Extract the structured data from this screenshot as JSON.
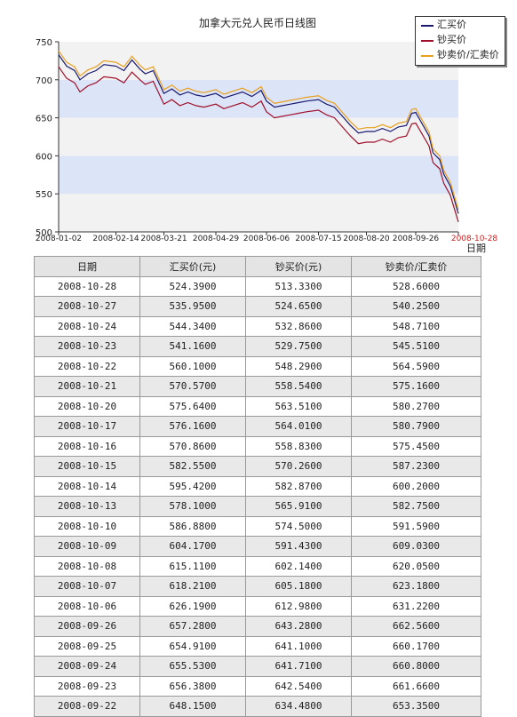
{
  "chart_data": {
    "type": "line",
    "title": "加拿大元兑人民币日线图",
    "xlabel": "日期",
    "ylabel": "",
    "ylim": [
      500,
      750
    ],
    "yticks": [
      500,
      550,
      600,
      650,
      700,
      750
    ],
    "xlim": [
      "2008-01-02",
      "2008-10-28"
    ],
    "xticks": [
      "2008-01-02",
      "2008-02-14",
      "2008-03-21",
      "2008-04-29",
      "2008-06-06",
      "2008-07-15",
      "2008-08-20",
      "2008-09-26",
      "2008-10-28"
    ],
    "legend_position": "top-right",
    "background_bands": true,
    "grid": false,
    "x": [
      "2008-01-02",
      "2008-01-08",
      "2008-01-14",
      "2008-01-18",
      "2008-01-24",
      "2008-01-30",
      "2008-02-05",
      "2008-02-14",
      "2008-02-20",
      "2008-02-26",
      "2008-03-03",
      "2008-03-07",
      "2008-03-13",
      "2008-03-21",
      "2008-03-27",
      "2008-04-02",
      "2008-04-08",
      "2008-04-14",
      "2008-04-20",
      "2008-04-29",
      "2008-05-05",
      "2008-05-12",
      "2008-05-19",
      "2008-05-26",
      "2008-06-02",
      "2008-06-06",
      "2008-06-12",
      "2008-06-18",
      "2008-06-24",
      "2008-06-30",
      "2008-07-06",
      "2008-07-15",
      "2008-07-21",
      "2008-07-27",
      "2008-08-02",
      "2008-08-08",
      "2008-08-14",
      "2008-08-20",
      "2008-08-26",
      "2008-09-01",
      "2008-09-07",
      "2008-09-13",
      "2008-09-19",
      "2008-09-23",
      "2008-09-26",
      "2008-10-06",
      "2008-10-09",
      "2008-10-14",
      "2008-10-17",
      "2008-10-22",
      "2008-10-28"
    ],
    "series": [
      {
        "name": "汇买价",
        "color": "#1a1a70",
        "values": [
          733,
          718,
          712,
          700,
          708,
          712,
          720,
          718,
          712,
          726,
          714,
          708,
          712,
          682,
          688,
          680,
          684,
          680,
          678,
          682,
          676,
          680,
          684,
          678,
          686,
          672,
          664,
          666,
          668,
          670,
          672,
          674,
          668,
          664,
          652,
          640,
          630,
          632,
          632,
          636,
          632,
          638,
          640,
          656,
          657,
          626,
          604,
          595,
          576,
          560,
          524
        ]
      },
      {
        "name": "钞买价",
        "color": "#a0102a",
        "values": [
          717,
          702,
          696,
          684,
          692,
          696,
          704,
          702,
          696,
          710,
          700,
          694,
          698,
          668,
          674,
          666,
          670,
          666,
          664,
          668,
          662,
          666,
          670,
          664,
          672,
          658,
          650,
          652,
          654,
          656,
          658,
          660,
          654,
          650,
          638,
          626,
          616,
          618,
          618,
          622,
          618,
          624,
          626,
          642,
          643,
          613,
          591,
          583,
          564,
          548,
          513
        ]
      },
      {
        "name": "钞卖价/汇卖价",
        "color": "#e8a020",
        "values": [
          738,
          723,
          717,
          705,
          713,
          717,
          725,
          723,
          717,
          731,
          719,
          713,
          717,
          687,
          693,
          685,
          689,
          685,
          683,
          687,
          681,
          685,
          689,
          683,
          691,
          677,
          669,
          671,
          673,
          675,
          677,
          679,
          673,
          669,
          657,
          645,
          635,
          637,
          637,
          641,
          637,
          643,
          645,
          661,
          662,
          631,
          609,
          600,
          581,
          565,
          529
        ]
      }
    ]
  },
  "table": {
    "headers": [
      "日期",
      "汇买价(元)",
      "钞买价(元)",
      "钞卖价/汇卖价"
    ],
    "rows": [
      [
        "2008-10-28",
        "524.3900",
        "513.3300",
        "528.6000"
      ],
      [
        "2008-10-27",
        "535.9500",
        "524.6500",
        "540.2500"
      ],
      [
        "2008-10-24",
        "544.3400",
        "532.8600",
        "548.7100"
      ],
      [
        "2008-10-23",
        "541.1600",
        "529.7500",
        "545.5100"
      ],
      [
        "2008-10-22",
        "560.1000",
        "548.2900",
        "564.5900"
      ],
      [
        "2008-10-21",
        "570.5700",
        "558.5400",
        "575.1600"
      ],
      [
        "2008-10-20",
        "575.6400",
        "563.5100",
        "580.2700"
      ],
      [
        "2008-10-17",
        "576.1600",
        "564.0100",
        "580.7900"
      ],
      [
        "2008-10-16",
        "570.8600",
        "558.8300",
        "575.4500"
      ],
      [
        "2008-10-15",
        "582.5500",
        "570.2600",
        "587.2300"
      ],
      [
        "2008-10-14",
        "595.4200",
        "582.8700",
        "600.2000"
      ],
      [
        "2008-10-13",
        "578.1000",
        "565.9100",
        "582.7500"
      ],
      [
        "2008-10-10",
        "586.8800",
        "574.5000",
        "591.5900"
      ],
      [
        "2008-10-09",
        "604.1700",
        "591.4300",
        "609.0300"
      ],
      [
        "2008-10-08",
        "615.1100",
        "602.1400",
        "620.0500"
      ],
      [
        "2008-10-07",
        "618.2100",
        "605.1800",
        "623.1800"
      ],
      [
        "2008-10-06",
        "626.1900",
        "612.9800",
        "631.2200"
      ],
      [
        "2008-09-26",
        "657.2800",
        "643.2800",
        "662.5600"
      ],
      [
        "2008-09-25",
        "654.9100",
        "641.1000",
        "660.1700"
      ],
      [
        "2008-09-24",
        "655.5300",
        "641.7100",
        "660.8000"
      ],
      [
        "2008-09-23",
        "656.3800",
        "642.5400",
        "661.6600"
      ],
      [
        "2008-09-22",
        "648.1500",
        "634.4800",
        "653.3500"
      ]
    ]
  }
}
